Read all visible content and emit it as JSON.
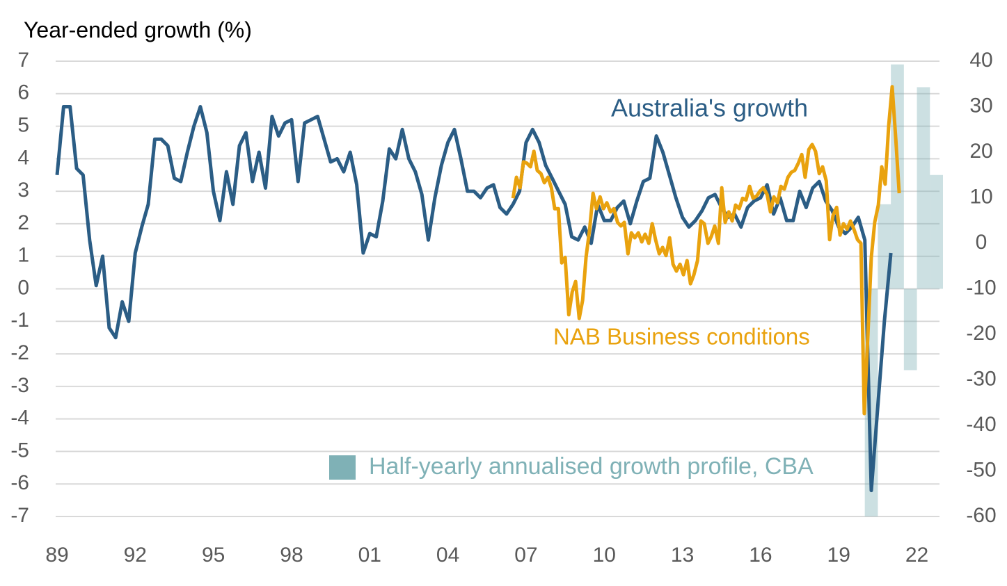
{
  "chart_data": {
    "type": "line",
    "y_label": "Year-ended growth (%)",
    "xlim": [
      1989,
      2023
    ],
    "xticks": [
      {
        "value": 1989,
        "label": "89"
      },
      {
        "value": 1992,
        "label": "92"
      },
      {
        "value": 1995,
        "label": "95"
      },
      {
        "value": 1998,
        "label": "98"
      },
      {
        "value": 2001,
        "label": "01"
      },
      {
        "value": 2004,
        "label": "04"
      },
      {
        "value": 2007,
        "label": "07"
      },
      {
        "value": 2010,
        "label": "10"
      },
      {
        "value": 2013,
        "label": "13"
      },
      {
        "value": 2016,
        "label": "16"
      },
      {
        "value": 2019,
        "label": "19"
      },
      {
        "value": 2022,
        "label": "22"
      }
    ],
    "ylim": [
      -7,
      7
    ],
    "yticks": [
      7,
      6,
      5,
      4,
      3,
      2,
      1,
      0,
      -1,
      -2,
      -3,
      -4,
      -5,
      -6,
      -7
    ],
    "y2lim": [
      -60,
      40
    ],
    "y2ticks": [
      40,
      30,
      20,
      10,
      0,
      -10,
      -20,
      -30,
      -40,
      -50,
      -60
    ],
    "grid": true,
    "series": [
      {
        "name": "Australia's growth",
        "type": "line",
        "color": "#2b5d85",
        "x": [
          1989,
          1989.25,
          1989.5,
          1989.75,
          1990,
          1990.25,
          1990.5,
          1990.75,
          1991,
          1991.25,
          1991.5,
          1991.75,
          1992,
          1992.25,
          1992.5,
          1992.75,
          1993,
          1993.25,
          1993.5,
          1993.75,
          1994,
          1994.25,
          1994.5,
          1994.75,
          1995,
          1995.25,
          1995.5,
          1995.75,
          1996,
          1996.25,
          1996.5,
          1996.75,
          1997,
          1997.25,
          1997.5,
          1997.75,
          1998,
          1998.25,
          1998.5,
          1998.75,
          1999,
          1999.25,
          1999.5,
          1999.75,
          2000,
          2000.25,
          2000.5,
          2000.75,
          2001,
          2001.25,
          2001.5,
          2001.75,
          2002,
          2002.25,
          2002.5,
          2002.75,
          2003,
          2003.25,
          2003.5,
          2003.75,
          2004,
          2004.25,
          2004.5,
          2004.75,
          2005,
          2005.25,
          2005.5,
          2005.75,
          2006,
          2006.25,
          2006.5,
          2006.75,
          2007,
          2007.25,
          2007.5,
          2007.75,
          2008,
          2008.25,
          2008.5,
          2008.75,
          2009,
          2009.25,
          2009.5,
          2009.75,
          2010,
          2010.25,
          2010.5,
          2010.75,
          2011,
          2011.25,
          2011.5,
          2011.75,
          2012,
          2012.25,
          2012.5,
          2012.75,
          2013,
          2013.25,
          2013.5,
          2013.75,
          2014,
          2014.25,
          2014.5,
          2014.75,
          2015,
          2015.25,
          2015.5,
          2015.75,
          2016,
          2016.25,
          2016.5,
          2016.75,
          2017,
          2017.25,
          2017.5,
          2017.75,
          2018,
          2018.25,
          2018.5,
          2018.75,
          2019,
          2019.25,
          2019.5,
          2019.75,
          2020,
          2020.25,
          2020.5,
          2020.75,
          2021
        ],
        "values": [
          3.5,
          5.6,
          5.6,
          3.7,
          3.5,
          1.5,
          0.1,
          1.0,
          -1.2,
          -1.5,
          -0.4,
          -1.0,
          1.1,
          1.9,
          2.6,
          4.6,
          4.6,
          4.4,
          3.4,
          3.3,
          4.2,
          5.0,
          5.6,
          4.8,
          3.0,
          2.1,
          3.6,
          2.6,
          4.4,
          4.8,
          3.3,
          4.2,
          3.1,
          5.3,
          4.7,
          5.1,
          5.2,
          3.3,
          5.1,
          5.2,
          5.3,
          4.6,
          3.9,
          4.0,
          3.6,
          4.2,
          3.2,
          1.1,
          1.7,
          1.6,
          2.7,
          4.3,
          4.0,
          4.9,
          4.0,
          3.6,
          2.9,
          1.5,
          2.8,
          3.8,
          4.5,
          4.9,
          4.0,
          3.0,
          3.0,
          2.8,
          3.1,
          3.2,
          2.5,
          2.3,
          2.6,
          3.0,
          4.5,
          4.9,
          4.5,
          3.8,
          3.4,
          3.0,
          2.6,
          1.6,
          1.5,
          1.9,
          1.4,
          2.6,
          2.1,
          2.1,
          2.5,
          2.7,
          2.0,
          2.7,
          3.3,
          3.4,
          4.7,
          4.2,
          3.5,
          2.8,
          2.2,
          1.9,
          2.1,
          2.4,
          2.8,
          2.9,
          2.5,
          2.2,
          2.3,
          1.9,
          2.5,
          2.7,
          2.8,
          3.2,
          2.3,
          2.8,
          2.1,
          2.1,
          3.0,
          2.5,
          3.1,
          3.3,
          2.7,
          2.4,
          1.9,
          1.7,
          1.9,
          2.2,
          1.5,
          -6.2,
          -3.6,
          -1.0,
          1.1
        ]
      },
      {
        "name": "NAB Business conditions",
        "type": "line",
        "axis": "y2",
        "color": "#e9a20e",
        "x": [
          2006.5,
          2006.63,
          2006.77,
          2006.9,
          2007.03,
          2007.17,
          2007.3,
          2007.43,
          2007.57,
          2007.7,
          2007.84,
          2007.97,
          2008.1,
          2008.24,
          2008.37,
          2008.5,
          2008.64,
          2008.77,
          2008.9,
          2009.04,
          2009.17,
          2009.3,
          2009.44,
          2009.57,
          2009.7,
          2009.84,
          2009.97,
          2010.1,
          2010.24,
          2010.37,
          2010.51,
          2010.64,
          2010.77,
          2010.91,
          2011.04,
          2011.17,
          2011.31,
          2011.44,
          2011.57,
          2011.71,
          2011.84,
          2011.97,
          2012.11,
          2012.24,
          2012.37,
          2012.51,
          2012.64,
          2012.77,
          2012.91,
          2013.04,
          2013.18,
          2013.31,
          2013.44,
          2013.58,
          2013.71,
          2013.84,
          2013.98,
          2014.11,
          2014.24,
          2014.38,
          2014.51,
          2014.64,
          2014.78,
          2014.91,
          2015.04,
          2015.18,
          2015.31,
          2015.44,
          2015.58,
          2015.71,
          2015.85,
          2015.98,
          2016.11,
          2016.25,
          2016.38,
          2016.51,
          2016.65,
          2016.78,
          2016.91,
          2017.05,
          2017.18,
          2017.31,
          2017.45,
          2017.58,
          2017.71,
          2017.85,
          2017.98,
          2018.11,
          2018.25,
          2018.38,
          2018.52,
          2018.65,
          2018.78,
          2018.92,
          2019.05,
          2019.18,
          2019.32,
          2019.45,
          2019.58,
          2019.72,
          2019.85,
          2019.98,
          2020.12,
          2020.25,
          2020.38,
          2020.52,
          2020.65,
          2020.78,
          2020.92,
          2021.05,
          2021.19,
          2021.32
        ],
        "values": [
          9.9,
          14.5,
          12.2,
          17.9,
          17.6,
          16.8,
          20.2,
          16.0,
          15.3,
          13.3,
          14.5,
          12.2,
          7.6,
          7.6,
          -4.3,
          -3.1,
          -15.7,
          -10.7,
          -8.4,
          -16.5,
          -12.5,
          -3.1,
          3.1,
          11.0,
          7.6,
          10.2,
          7.6,
          8.9,
          6.9,
          7.6,
          4.6,
          3.8,
          4.6,
          -2.3,
          2.3,
          1.2,
          2.3,
          0.3,
          2.0,
          0,
          4.3,
          0.8,
          -2.3,
          -0.9,
          -2.7,
          1.2,
          -4.6,
          -6.1,
          -4.6,
          -6.9,
          -3.8,
          -8.9,
          -6.9,
          -3.8,
          4.9,
          4.3,
          0,
          1.5,
          3.8,
          0,
          12.2,
          4.6,
          6.9,
          4.9,
          8.4,
          7.6,
          9.9,
          9.5,
          12.5,
          9.9,
          10.4,
          11.5,
          12.2,
          10.7,
          6.9,
          10.2,
          8.9,
          12.5,
          11.9,
          14.5,
          15.6,
          16.0,
          17.6,
          19.5,
          14.5,
          20.6,
          21.7,
          20.2,
          15.3,
          16.8,
          13.7,
          0.8,
          6.1,
          7.9,
          1.8,
          4.3,
          3.1,
          4.9,
          3.1,
          0.8,
          0,
          -37.4,
          -19.8,
          -3.1,
          4.6,
          8.4,
          16.8,
          13.0,
          26.0,
          34.4,
          22.9,
          11.0
        ]
      },
      {
        "name": "Half-yearly annualised growth profile, CBA",
        "type": "bar",
        "color": "#7fb1b6",
        "x": [
          2020.25,
          2020.75,
          2021.25,
          2021.75,
          2022.25,
          2022.75
        ],
        "values": [
          -7,
          2.6,
          6.9,
          -2.5,
          6.2,
          3.5
        ]
      }
    ]
  }
}
